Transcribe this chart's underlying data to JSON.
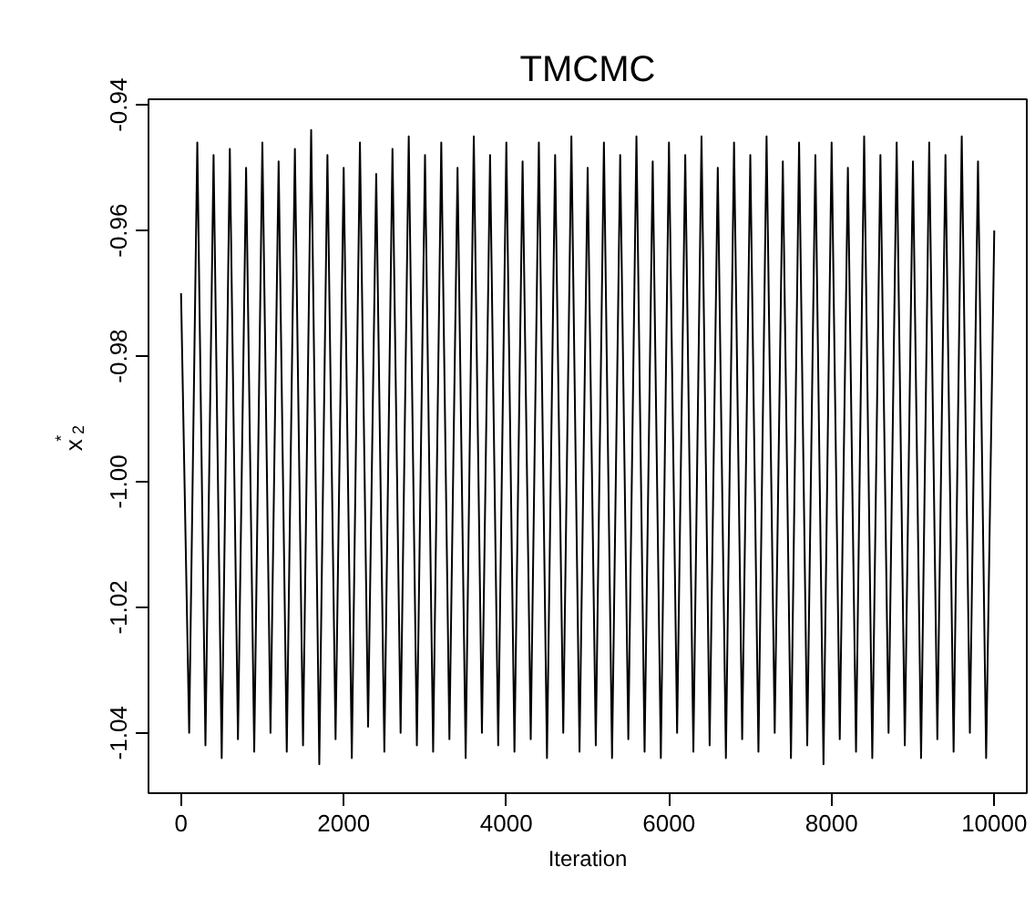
{
  "chart_data": {
    "type": "line",
    "title": "TMCMC",
    "xlabel": "Iteration",
    "ylabel": "x$^{*}$$_{2}$",
    "x": [
      0,
      100,
      200,
      300,
      400,
      500,
      600,
      700,
      800,
      900,
      1000,
      1100,
      1200,
      1300,
      1400,
      1500,
      1600,
      1700,
      1800,
      1900,
      2000,
      2100,
      2200,
      2300,
      2400,
      2500,
      2600,
      2700,
      2800,
      2900,
      3000,
      3100,
      3200,
      3300,
      3400,
      3500,
      3600,
      3700,
      3800,
      3900,
      4000,
      4100,
      4200,
      4300,
      4400,
      4500,
      4600,
      4700,
      4800,
      4900,
      5000,
      5100,
      5200,
      5300,
      5400,
      5500,
      5600,
      5700,
      5800,
      5900,
      6000,
      6100,
      6200,
      6300,
      6400,
      6500,
      6600,
      6700,
      6800,
      6900,
      7000,
      7100,
      7200,
      7300,
      7400,
      7500,
      7600,
      7700,
      7800,
      7900,
      8000,
      8100,
      8200,
      8300,
      8400,
      8500,
      8600,
      8700,
      8800,
      8900,
      9000,
      9100,
      9200,
      9300,
      9400,
      9500,
      9600,
      9700,
      9800,
      9900,
      10000
    ],
    "series": [
      {
        "color": "#000000",
        "values": [
          -0.97,
          -1.04,
          -0.946,
          -1.042,
          -0.948,
          -1.044,
          -0.947,
          -1.041,
          -0.95,
          -1.043,
          -0.946,
          -1.04,
          -0.949,
          -1.043,
          -0.947,
          -1.042,
          -0.944,
          -1.045,
          -0.948,
          -1.041,
          -0.95,
          -1.044,
          -0.946,
          -1.039,
          -0.951,
          -1.043,
          -0.947,
          -1.04,
          -0.945,
          -1.042,
          -0.948,
          -1.043,
          -0.946,
          -1.041,
          -0.95,
          -1.044,
          -0.945,
          -1.04,
          -0.948,
          -1.042,
          -0.946,
          -1.043,
          -0.949,
          -1.041,
          -0.946,
          -1.044,
          -0.948,
          -1.04,
          -0.945,
          -1.043,
          -0.95,
          -1.042,
          -0.946,
          -1.044,
          -0.948,
          -1.041,
          -0.945,
          -1.043,
          -0.949,
          -1.044,
          -0.946,
          -1.04,
          -0.948,
          -1.043,
          -0.945,
          -1.042,
          -0.95,
          -1.044,
          -0.946,
          -1.041,
          -0.948,
          -1.043,
          -0.945,
          -1.04,
          -0.949,
          -1.044,
          -0.946,
          -1.042,
          -0.948,
          -1.045,
          -0.946,
          -1.041,
          -0.95,
          -1.043,
          -0.945,
          -1.044,
          -0.948,
          -1.04,
          -0.946,
          -1.042,
          -0.949,
          -1.044,
          -0.946,
          -1.041,
          -0.948,
          -1.043,
          -0.945,
          -1.04,
          -0.949,
          -1.044,
          -0.96
        ]
      }
    ],
    "xlim": [
      -400,
      10400
    ],
    "ylim": [
      -1.0496,
      -0.9391
    ],
    "xticks": [
      0,
      2000,
      4000,
      6000,
      8000,
      10000
    ],
    "yticks": [
      {
        "value": -1.04,
        "label": "-1.04"
      },
      {
        "value": -1.02,
        "label": "-1.02"
      },
      {
        "value": -1.0,
        "label": "-1.00"
      },
      {
        "value": -0.98,
        "label": "-0.98"
      },
      {
        "value": -0.96,
        "label": "-0.96"
      },
      {
        "value": -0.94,
        "label": "-0.94"
      }
    ],
    "grid": false,
    "line_style": "solid"
  }
}
